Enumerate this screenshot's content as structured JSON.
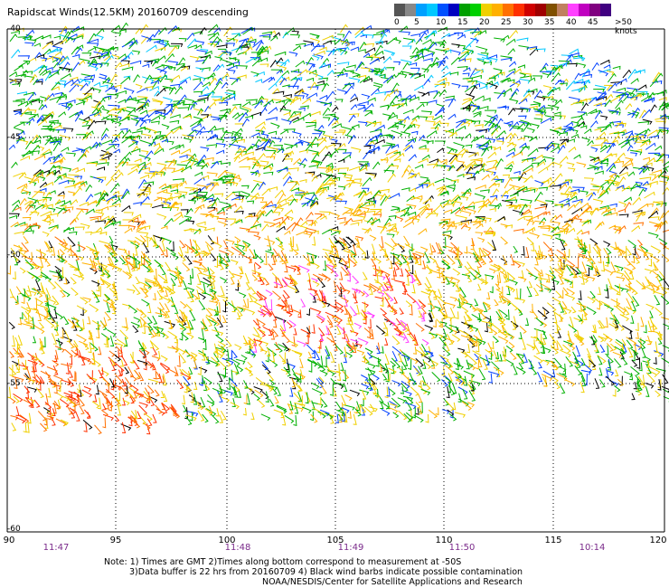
{
  "title": "Rapidscat Winds(12.5KM) 20160709 descending",
  "legend": {
    "colors": [
      "#555555",
      "#888888",
      "#00a0ff",
      "#00c8ff",
      "#0050ff",
      "#0000c0",
      "#00a000",
      "#00d000",
      "#f0d000",
      "#ffb000",
      "#ff7000",
      "#ff3000",
      "#d00000",
      "#a00000",
      "#805000",
      "#c08060",
      "#ff40ff",
      "#c000c0",
      "#800080",
      "#400080"
    ],
    "labels": [
      "0",
      "5",
      "10",
      "15",
      "20",
      "25",
      "30",
      "35",
      "40",
      "45",
      ">50 knots"
    ]
  },
  "axes": {
    "x_ticks": [
      "90",
      "95",
      "100",
      "105",
      "110",
      "115",
      "120"
    ],
    "y_ticks": [
      "-40",
      "-45",
      "-50",
      "-55",
      "-60"
    ],
    "times": [
      "11:47",
      "11:48",
      "11:49",
      "11:50",
      "10:14"
    ]
  },
  "note": {
    "line1": "Note: 1) Times are GMT 2)Times along bottom correspond to measurement at -50S",
    "line2": "3)Data buffer is 22 hrs from 20160709 4) Black wind barbs indicate possible contamination",
    "line3": "NOAA/NESDIS/Center for Satellite Applications and Research"
  }
}
